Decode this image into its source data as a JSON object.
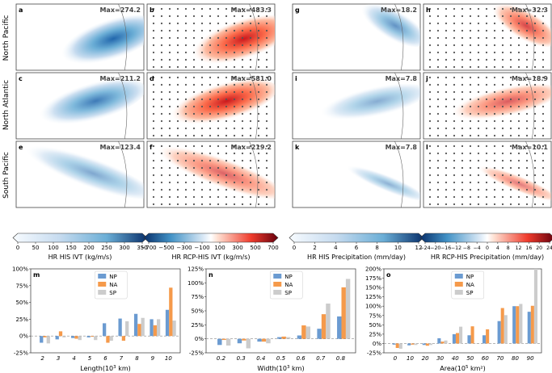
{
  "rows": [
    {
      "label": "North Pacific"
    },
    {
      "label": "North Atlantic"
    },
    {
      "label": "South Pacific"
    }
  ],
  "maps": [
    {
      "panel": "a",
      "max_text": "Max=274.2",
      "ramp": "blue",
      "field": "np",
      "dots": false,
      "peak": 1.0
    },
    {
      "panel": "b",
      "max_text": "Max=483.3",
      "ramp": "red",
      "field": "np",
      "dots": true,
      "peak": 1.0
    },
    {
      "panel": "g",
      "max_text": "Max=18.2",
      "ramp": "blue",
      "field": "npp",
      "dots": false,
      "peak": 0.55
    },
    {
      "panel": "h",
      "max_text": "Max=32.3",
      "ramp": "red",
      "field": "npp",
      "dots": true,
      "peak": 0.7
    },
    {
      "panel": "c",
      "max_text": "Max=211.2",
      "ramp": "blue",
      "field": "na",
      "dots": false,
      "peak": 0.8
    },
    {
      "panel": "d",
      "max_text": "Max=581.0",
      "ramp": "red",
      "field": "na",
      "dots": true,
      "peak": 1.0
    },
    {
      "panel": "i",
      "max_text": "Max=7.8",
      "ramp": "blue",
      "field": "nap",
      "dots": false,
      "peak": 0.3
    },
    {
      "panel": "j",
      "max_text": "Max=18.9",
      "ramp": "red",
      "field": "nap",
      "dots": true,
      "peak": 0.55
    },
    {
      "panel": "e",
      "max_text": "Max=123.4",
      "ramp": "blue",
      "field": "sp",
      "dots": false,
      "peak": 0.35
    },
    {
      "panel": "f",
      "max_text": "Max=219.2",
      "ramp": "red",
      "field": "sp",
      "dots": true,
      "peak": 0.5
    },
    {
      "panel": "k",
      "max_text": "Max=7.8",
      "ramp": "blue",
      "field": "spp",
      "dots": false,
      "peak": 0.25
    },
    {
      "panel": "l",
      "max_text": "Max=10.1",
      "ramp": "red",
      "field": "spp",
      "dots": true,
      "peak": 0.35
    }
  ],
  "colorbars": [
    {
      "ticks": [
        "0",
        "50",
        "100",
        "150",
        "200",
        "250",
        "300",
        "350"
      ],
      "label": "HR HIS IVT (kg/m/s)",
      "ramp": "blue"
    },
    {
      "ticks": [
        "−700",
        "−500",
        "−300",
        "−100",
        "100",
        "300",
        "500",
        "700"
      ],
      "label": "HR RCP-HIS IVT (kg/m/s)",
      "ramp": "div"
    },
    {
      "ticks": [
        "0",
        "2",
        "4",
        "6",
        "8",
        "10",
        "12"
      ],
      "label": "HR HIS Precipitation (mm/day)",
      "ramp": "blue"
    },
    {
      "ticks": [
        "−24",
        "−20",
        "−16",
        "−12",
        "−8",
        "−4",
        "0",
        "4",
        "8",
        "12",
        "16",
        "20",
        "24"
      ],
      "label": "HR RCP-HIS Precipitation (mm/day)",
      "ramp": "div"
    }
  ],
  "colors": {
    "NP": "#6b9bd1",
    "NA": "#f59a4b",
    "SP": "#cccccc"
  },
  "chart_data": [
    {
      "type": "bar",
      "panel": "m",
      "xlabel_main": "Length(10",
      "xlabel_sup": "3",
      "xlabel_end": " km)",
      "categories": [
        "2",
        "3",
        "4",
        "5",
        "6",
        "7",
        "8",
        "9",
        "10"
      ],
      "ylim": [
        -25,
        100
      ],
      "yticks": [
        "-25%",
        "0%",
        "25%",
        "50%",
        "75%",
        "100%"
      ],
      "series": [
        {
          "name": "NP",
          "values": [
            -10,
            -5,
            -3,
            -2,
            19,
            26,
            33,
            25,
            39
          ]
        },
        {
          "name": "NA",
          "values": [
            -2,
            7,
            -4,
            -1,
            -10,
            -7,
            18,
            16,
            72
          ]
        },
        {
          "name": "SP",
          "values": [
            -11,
            -2,
            -6,
            -6,
            -7,
            22,
            27,
            25,
            23
          ]
        }
      ]
    },
    {
      "type": "bar",
      "panel": "n",
      "xlabel_main": "Width(10",
      "xlabel_sup": "3",
      "xlabel_end": " km)",
      "categories": [
        "0.2",
        "0.3",
        "0.4",
        "0.5",
        "0.6",
        "0.7",
        "0.8"
      ],
      "ylim": [
        -25,
        125
      ],
      "yticks": [
        "-25%",
        "0%",
        "25%",
        "50%",
        "75%",
        "100%",
        "125%"
      ],
      "series": [
        {
          "name": "NP",
          "values": [
            -11,
            -8,
            -5,
            3,
            6,
            18,
            40
          ]
        },
        {
          "name": "NA",
          "values": [
            -2,
            -3,
            -5,
            4,
            24,
            44,
            92
          ]
        },
        {
          "name": "SP",
          "values": [
            -12,
            -17,
            -8,
            3,
            22,
            63,
            107
          ]
        }
      ]
    },
    {
      "type": "bar",
      "panel": "o",
      "xlabel_main": "Area(10",
      "xlabel_sup": "5",
      "xlabel_end": " km²)",
      "categories": [
        "0",
        "10",
        "20",
        "30",
        "40",
        "50",
        "60",
        "70",
        "80",
        "90"
      ],
      "ylim": [
        -25,
        200
      ],
      "yticks": [
        "-25%",
        "0%",
        "25%",
        "50%",
        "75%",
        "100%",
        "125%",
        "150%",
        "175%",
        "200%"
      ],
      "series": [
        {
          "name": "NP",
          "values": [
            -3,
            -5,
            -4,
            14,
            25,
            22,
            22,
            60,
            100,
            85
          ]
        },
        {
          "name": "NA",
          "values": [
            -12,
            -3,
            -6,
            5,
            28,
            46,
            38,
            95,
            100,
            101
          ]
        },
        {
          "name": "SP",
          "values": [
            -14,
            -4,
            -4,
            8,
            45,
            0,
            0,
            76,
            106,
            200
          ]
        }
      ]
    }
  ]
}
